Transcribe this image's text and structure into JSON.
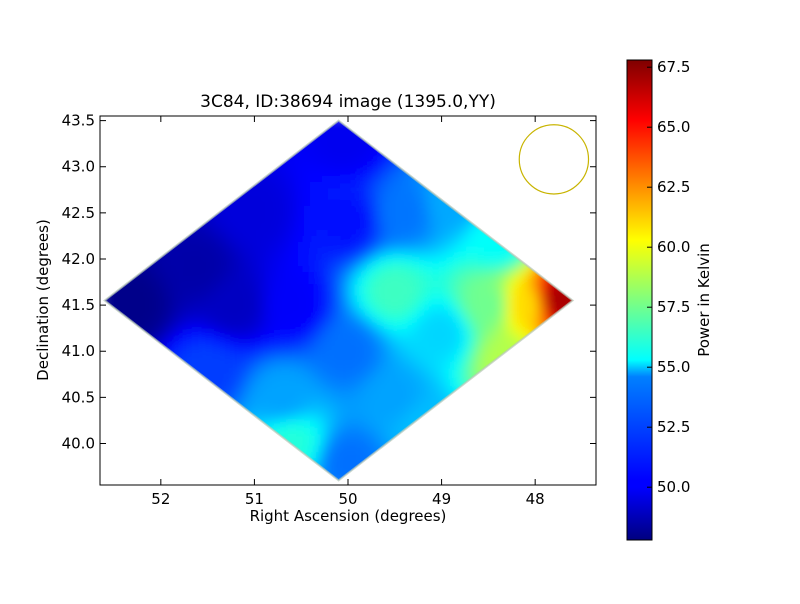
{
  "chart_data": {
    "type": "heatmap",
    "title": "3C84, ID:38694 image (1395.0,YY)",
    "xlabel": "Right Ascension (degrees)",
    "ylabel": "Declination (degrees)",
    "colorbar_label": "Power in Kelvin",
    "x_reversed": true,
    "xlim": [
      52.65,
      47.35
    ],
    "ylim": [
      39.55,
      43.55
    ],
    "x_ticks": [
      {
        "value": 52,
        "label": "52"
      },
      {
        "value": 51,
        "label": "51"
      },
      {
        "value": 50,
        "label": "50"
      },
      {
        "value": 49,
        "label": "49"
      },
      {
        "value": 48,
        "label": "48"
      }
    ],
    "y_ticks": [
      {
        "value": 40.0,
        "label": "40.0"
      },
      {
        "value": 40.5,
        "label": "40.5"
      },
      {
        "value": 41.0,
        "label": "41.0"
      },
      {
        "value": 41.5,
        "label": "41.5"
      },
      {
        "value": 42.0,
        "label": "42.0"
      },
      {
        "value": 42.5,
        "label": "42.5"
      },
      {
        "value": 43.0,
        "label": "43.0"
      },
      {
        "value": 43.5,
        "label": "43.5"
      }
    ],
    "colorbar_range": [
      47.8,
      67.8
    ],
    "colorbar_ticks": [
      {
        "value": 50.0,
        "label": "50.0"
      },
      {
        "value": 52.5,
        "label": "52.5"
      },
      {
        "value": 55.0,
        "label": "55.0"
      },
      {
        "value": 57.5,
        "label": "57.5"
      },
      {
        "value": 60.0,
        "label": "60.0"
      },
      {
        "value": 62.5,
        "label": "62.5"
      },
      {
        "value": 65.0,
        "label": "65.0"
      },
      {
        "value": 67.5,
        "label": "67.5"
      }
    ],
    "colormap": "jet",
    "coverage_region": {
      "shape": "diamond",
      "ra_range": [
        52.6,
        47.6
      ],
      "dec_range": [
        39.6,
        43.5
      ]
    },
    "beam": {
      "ra": 47.8,
      "dec": 43.08,
      "radius_deg": 0.37,
      "color": "#c8b400"
    },
    "map_samples": [
      {
        "ra": 52.3,
        "dec": 41.5,
        "value": 48.0
      },
      {
        "ra": 51.6,
        "dec": 41.9,
        "value": 48.6
      },
      {
        "ra": 51.2,
        "dec": 41.5,
        "value": 49.1
      },
      {
        "ra": 50.6,
        "dec": 41.5,
        "value": 50.2
      },
      {
        "ra": 51.0,
        "dec": 42.5,
        "value": 49.6
      },
      {
        "ra": 50.0,
        "dec": 43.3,
        "value": 50.0
      },
      {
        "ra": 50.0,
        "dec": 42.4,
        "value": 50.6
      },
      {
        "ra": 49.4,
        "dec": 42.5,
        "value": 52.6
      },
      {
        "ra": 48.9,
        "dec": 42.6,
        "value": 53.6
      },
      {
        "ra": 48.4,
        "dec": 42.2,
        "value": 55.4
      },
      {
        "ra": 49.5,
        "dec": 41.65,
        "value": 56.5
      },
      {
        "ra": 49.0,
        "dec": 41.2,
        "value": 54.5
      },
      {
        "ra": 48.5,
        "dec": 41.5,
        "value": 57.5
      },
      {
        "ra": 48.1,
        "dec": 41.5,
        "value": 61.0
      },
      {
        "ra": 47.75,
        "dec": 41.55,
        "value": 67.0
      },
      {
        "ra": 48.3,
        "dec": 40.9,
        "value": 58.8
      },
      {
        "ra": 50.0,
        "dec": 41.0,
        "value": 52.5
      },
      {
        "ra": 50.7,
        "dec": 40.5,
        "value": 53.5
      },
      {
        "ra": 49.5,
        "dec": 40.5,
        "value": 53.5
      },
      {
        "ra": 50.6,
        "dec": 40.0,
        "value": 56.0
      },
      {
        "ra": 50.0,
        "dec": 39.8,
        "value": 52.5
      },
      {
        "ra": 49.2,
        "dec": 40.2,
        "value": 54.0
      },
      {
        "ra": 51.5,
        "dec": 40.8,
        "value": 51.5
      }
    ]
  }
}
